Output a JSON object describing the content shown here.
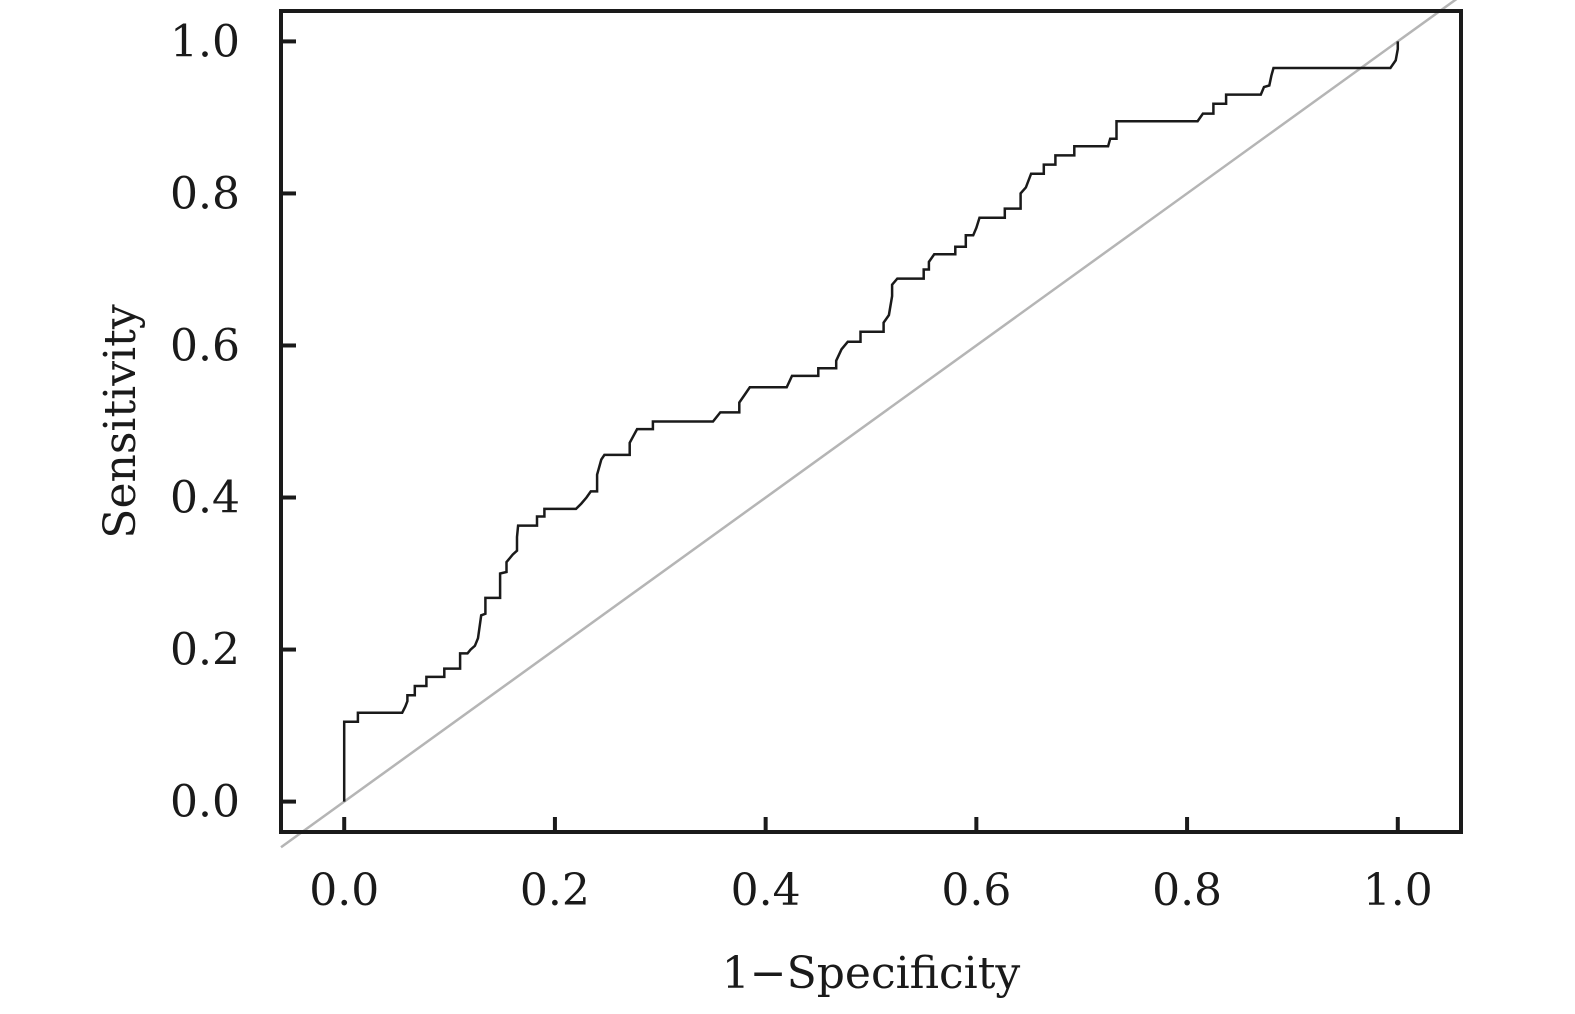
{
  "chart_data": {
    "type": "line",
    "title": "",
    "xlabel": "1−Specificity",
    "ylabel": "Sensitivity",
    "xlim": [
      -0.06,
      1.06
    ],
    "ylim": [
      -0.04,
      1.04
    ],
    "x_ticks": [
      "0.0",
      "0.2",
      "0.4",
      "0.6",
      "0.8",
      "1.0"
    ],
    "y_ticks": [
      "0.0",
      "0.2",
      "0.4",
      "0.6",
      "0.8",
      "1.0"
    ],
    "grid": false,
    "legend": "none",
    "colors": {
      "roc": "#1a1a1a",
      "reference": "#b5b5b5",
      "frame": "#1a1a1a"
    },
    "series": [
      {
        "type": "step",
        "points": [
          [
            0.0,
            0.0
          ],
          [
            0.0,
            0.105
          ],
          [
            0.013,
            0.105
          ],
          [
            0.013,
            0.117
          ],
          [
            0.055,
            0.117
          ],
          [
            0.058,
            0.125
          ],
          [
            0.06,
            0.132
          ],
          [
            0.06,
            0.14
          ],
          [
            0.067,
            0.14
          ],
          [
            0.067,
            0.152
          ],
          [
            0.078,
            0.152
          ],
          [
            0.078,
            0.164
          ],
          [
            0.095,
            0.164
          ],
          [
            0.095,
            0.175
          ],
          [
            0.11,
            0.175
          ],
          [
            0.11,
            0.195
          ],
          [
            0.117,
            0.195
          ],
          [
            0.12,
            0.2
          ],
          [
            0.124,
            0.205
          ],
          [
            0.127,
            0.215
          ],
          [
            0.13,
            0.245
          ],
          [
            0.134,
            0.247
          ],
          [
            0.134,
            0.268
          ],
          [
            0.148,
            0.268
          ],
          [
            0.148,
            0.3
          ],
          [
            0.154,
            0.302
          ],
          [
            0.154,
            0.315
          ],
          [
            0.16,
            0.325
          ],
          [
            0.164,
            0.33
          ],
          [
            0.164,
            0.348
          ],
          [
            0.165,
            0.363
          ],
          [
            0.183,
            0.363
          ],
          [
            0.183,
            0.375
          ],
          [
            0.19,
            0.375
          ],
          [
            0.19,
            0.385
          ],
          [
            0.22,
            0.385
          ],
          [
            0.225,
            0.392
          ],
          [
            0.23,
            0.4
          ],
          [
            0.234,
            0.408
          ],
          [
            0.24,
            0.408
          ],
          [
            0.24,
            0.43
          ],
          [
            0.244,
            0.45
          ],
          [
            0.247,
            0.456
          ],
          [
            0.271,
            0.456
          ],
          [
            0.271,
            0.472
          ],
          [
            0.278,
            0.49
          ],
          [
            0.293,
            0.49
          ],
          [
            0.293,
            0.5
          ],
          [
            0.35,
            0.5
          ],
          [
            0.357,
            0.512
          ],
          [
            0.375,
            0.512
          ],
          [
            0.375,
            0.525
          ],
          [
            0.38,
            0.535
          ],
          [
            0.385,
            0.545
          ],
          [
            0.42,
            0.545
          ],
          [
            0.425,
            0.56
          ],
          [
            0.45,
            0.56
          ],
          [
            0.45,
            0.57
          ],
          [
            0.467,
            0.57
          ],
          [
            0.467,
            0.58
          ],
          [
            0.472,
            0.595
          ],
          [
            0.478,
            0.605
          ],
          [
            0.49,
            0.605
          ],
          [
            0.49,
            0.618
          ],
          [
            0.512,
            0.618
          ],
          [
            0.512,
            0.63
          ],
          [
            0.517,
            0.64
          ],
          [
            0.52,
            0.665
          ],
          [
            0.52,
            0.68
          ],
          [
            0.525,
            0.688
          ],
          [
            0.55,
            0.688
          ],
          [
            0.55,
            0.7
          ],
          [
            0.555,
            0.7
          ],
          [
            0.555,
            0.71
          ],
          [
            0.56,
            0.72
          ],
          [
            0.58,
            0.72
          ],
          [
            0.58,
            0.73
          ],
          [
            0.59,
            0.73
          ],
          [
            0.59,
            0.745
          ],
          [
            0.597,
            0.745
          ],
          [
            0.6,
            0.755
          ],
          [
            0.603,
            0.768
          ],
          [
            0.627,
            0.768
          ],
          [
            0.627,
            0.78
          ],
          [
            0.642,
            0.78
          ],
          [
            0.642,
            0.8
          ],
          [
            0.647,
            0.808
          ],
          [
            0.652,
            0.826
          ],
          [
            0.664,
            0.826
          ],
          [
            0.664,
            0.838
          ],
          [
            0.675,
            0.838
          ],
          [
            0.675,
            0.85
          ],
          [
            0.693,
            0.85
          ],
          [
            0.693,
            0.862
          ],
          [
            0.725,
            0.862
          ],
          [
            0.727,
            0.872
          ],
          [
            0.733,
            0.872
          ],
          [
            0.733,
            0.895
          ],
          [
            0.81,
            0.895
          ],
          [
            0.815,
            0.905
          ],
          [
            0.825,
            0.905
          ],
          [
            0.825,
            0.918
          ],
          [
            0.837,
            0.918
          ],
          [
            0.837,
            0.93
          ],
          [
            0.87,
            0.93
          ],
          [
            0.873,
            0.94
          ],
          [
            0.878,
            0.942
          ],
          [
            0.88,
            0.955
          ],
          [
            0.882,
            0.965
          ],
          [
            0.993,
            0.965
          ],
          [
            0.998,
            0.975
          ],
          [
            1.0,
            0.99
          ],
          [
            1.0,
            1.0
          ]
        ]
      },
      {
        "type": "reference",
        "points": [
          [
            -0.06,
            -0.06
          ],
          [
            1.06,
            1.06
          ]
        ]
      }
    ]
  }
}
